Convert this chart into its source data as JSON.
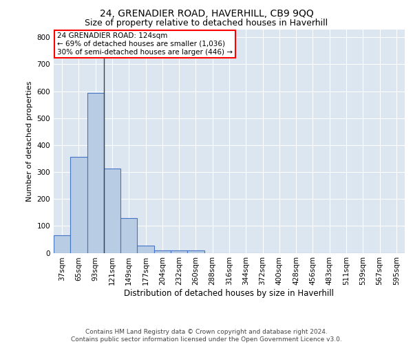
{
  "title": "24, GRENADIER ROAD, HAVERHILL, CB9 9QQ",
  "subtitle": "Size of property relative to detached houses in Haverhill",
  "xlabel": "Distribution of detached houses by size in Haverhill",
  "ylabel": "Number of detached properties",
  "footer_line1": "Contains HM Land Registry data © Crown copyright and database right 2024.",
  "footer_line2": "Contains public sector information licensed under the Open Government Licence v3.0.",
  "categories": [
    "37sqm",
    "65sqm",
    "93sqm",
    "121sqm",
    "149sqm",
    "177sqm",
    "204sqm",
    "232sqm",
    "260sqm",
    "288sqm",
    "316sqm",
    "344sqm",
    "372sqm",
    "400sqm",
    "428sqm",
    "456sqm",
    "483sqm",
    "511sqm",
    "539sqm",
    "567sqm",
    "595sqm"
  ],
  "values": [
    65,
    357,
    593,
    314,
    130,
    27,
    10,
    8,
    10,
    0,
    0,
    0,
    0,
    0,
    0,
    0,
    0,
    0,
    0,
    0,
    0
  ],
  "bar_color": "#b8cce4",
  "bar_edge_color": "#4472c4",
  "bar_linewidth": 0.8,
  "property_line_x": 2.5,
  "property_line_color": "#404040",
  "annotation_text": "24 GRENADIER ROAD: 124sqm\n← 69% of detached houses are smaller (1,036)\n30% of semi-detached houses are larger (446) →",
  "plot_bg_color": "#dce6f1",
  "ylim": [
    0,
    830
  ],
  "yticks": [
    0,
    100,
    200,
    300,
    400,
    500,
    600,
    700,
    800
  ],
  "grid_color": "#ffffff",
  "title_fontsize": 10,
  "subtitle_fontsize": 9,
  "xlabel_fontsize": 8.5,
  "ylabel_fontsize": 8,
  "tick_fontsize": 7.5,
  "footer_fontsize": 6.5,
  "ann_fontsize": 7.5
}
